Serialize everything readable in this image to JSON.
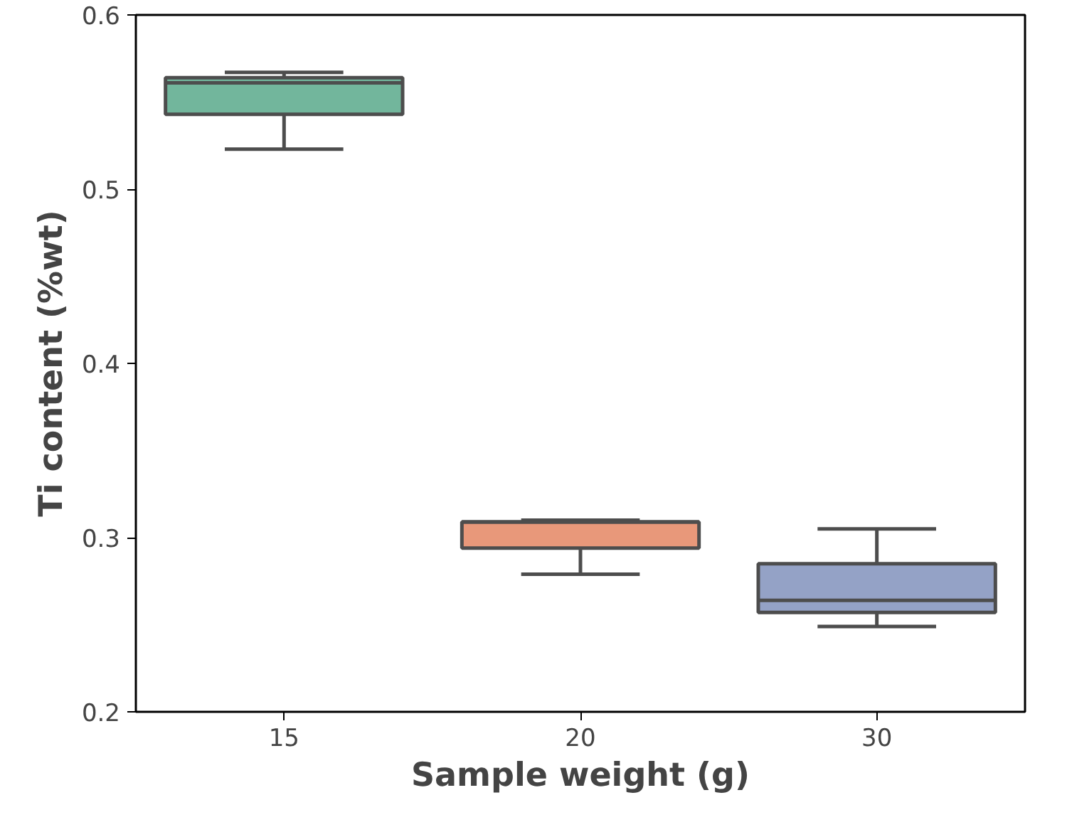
{
  "chart_data": {
    "type": "box",
    "xlabel": "Sample weight (g)",
    "ylabel": "Ti content (%wt)",
    "categories": [
      "15",
      "20",
      "30"
    ],
    "colors": [
      "#72b69c",
      "#e8987a",
      "#94a2c6"
    ],
    "boxes": [
      {
        "low": 0.523,
        "q1": 0.543,
        "median": 0.561,
        "q3": 0.564,
        "high": 0.567
      },
      {
        "low": 0.279,
        "q1": 0.294,
        "median": 0.309,
        "q3": 0.309,
        "high": 0.31
      },
      {
        "low": 0.249,
        "q1": 0.257,
        "median": 0.264,
        "q3": 0.285,
        "high": 0.305
      }
    ],
    "ylim": [
      0.2,
      0.6
    ],
    "yticks": [
      0.2,
      0.3,
      0.4,
      0.5,
      0.6
    ],
    "grid": false
  }
}
